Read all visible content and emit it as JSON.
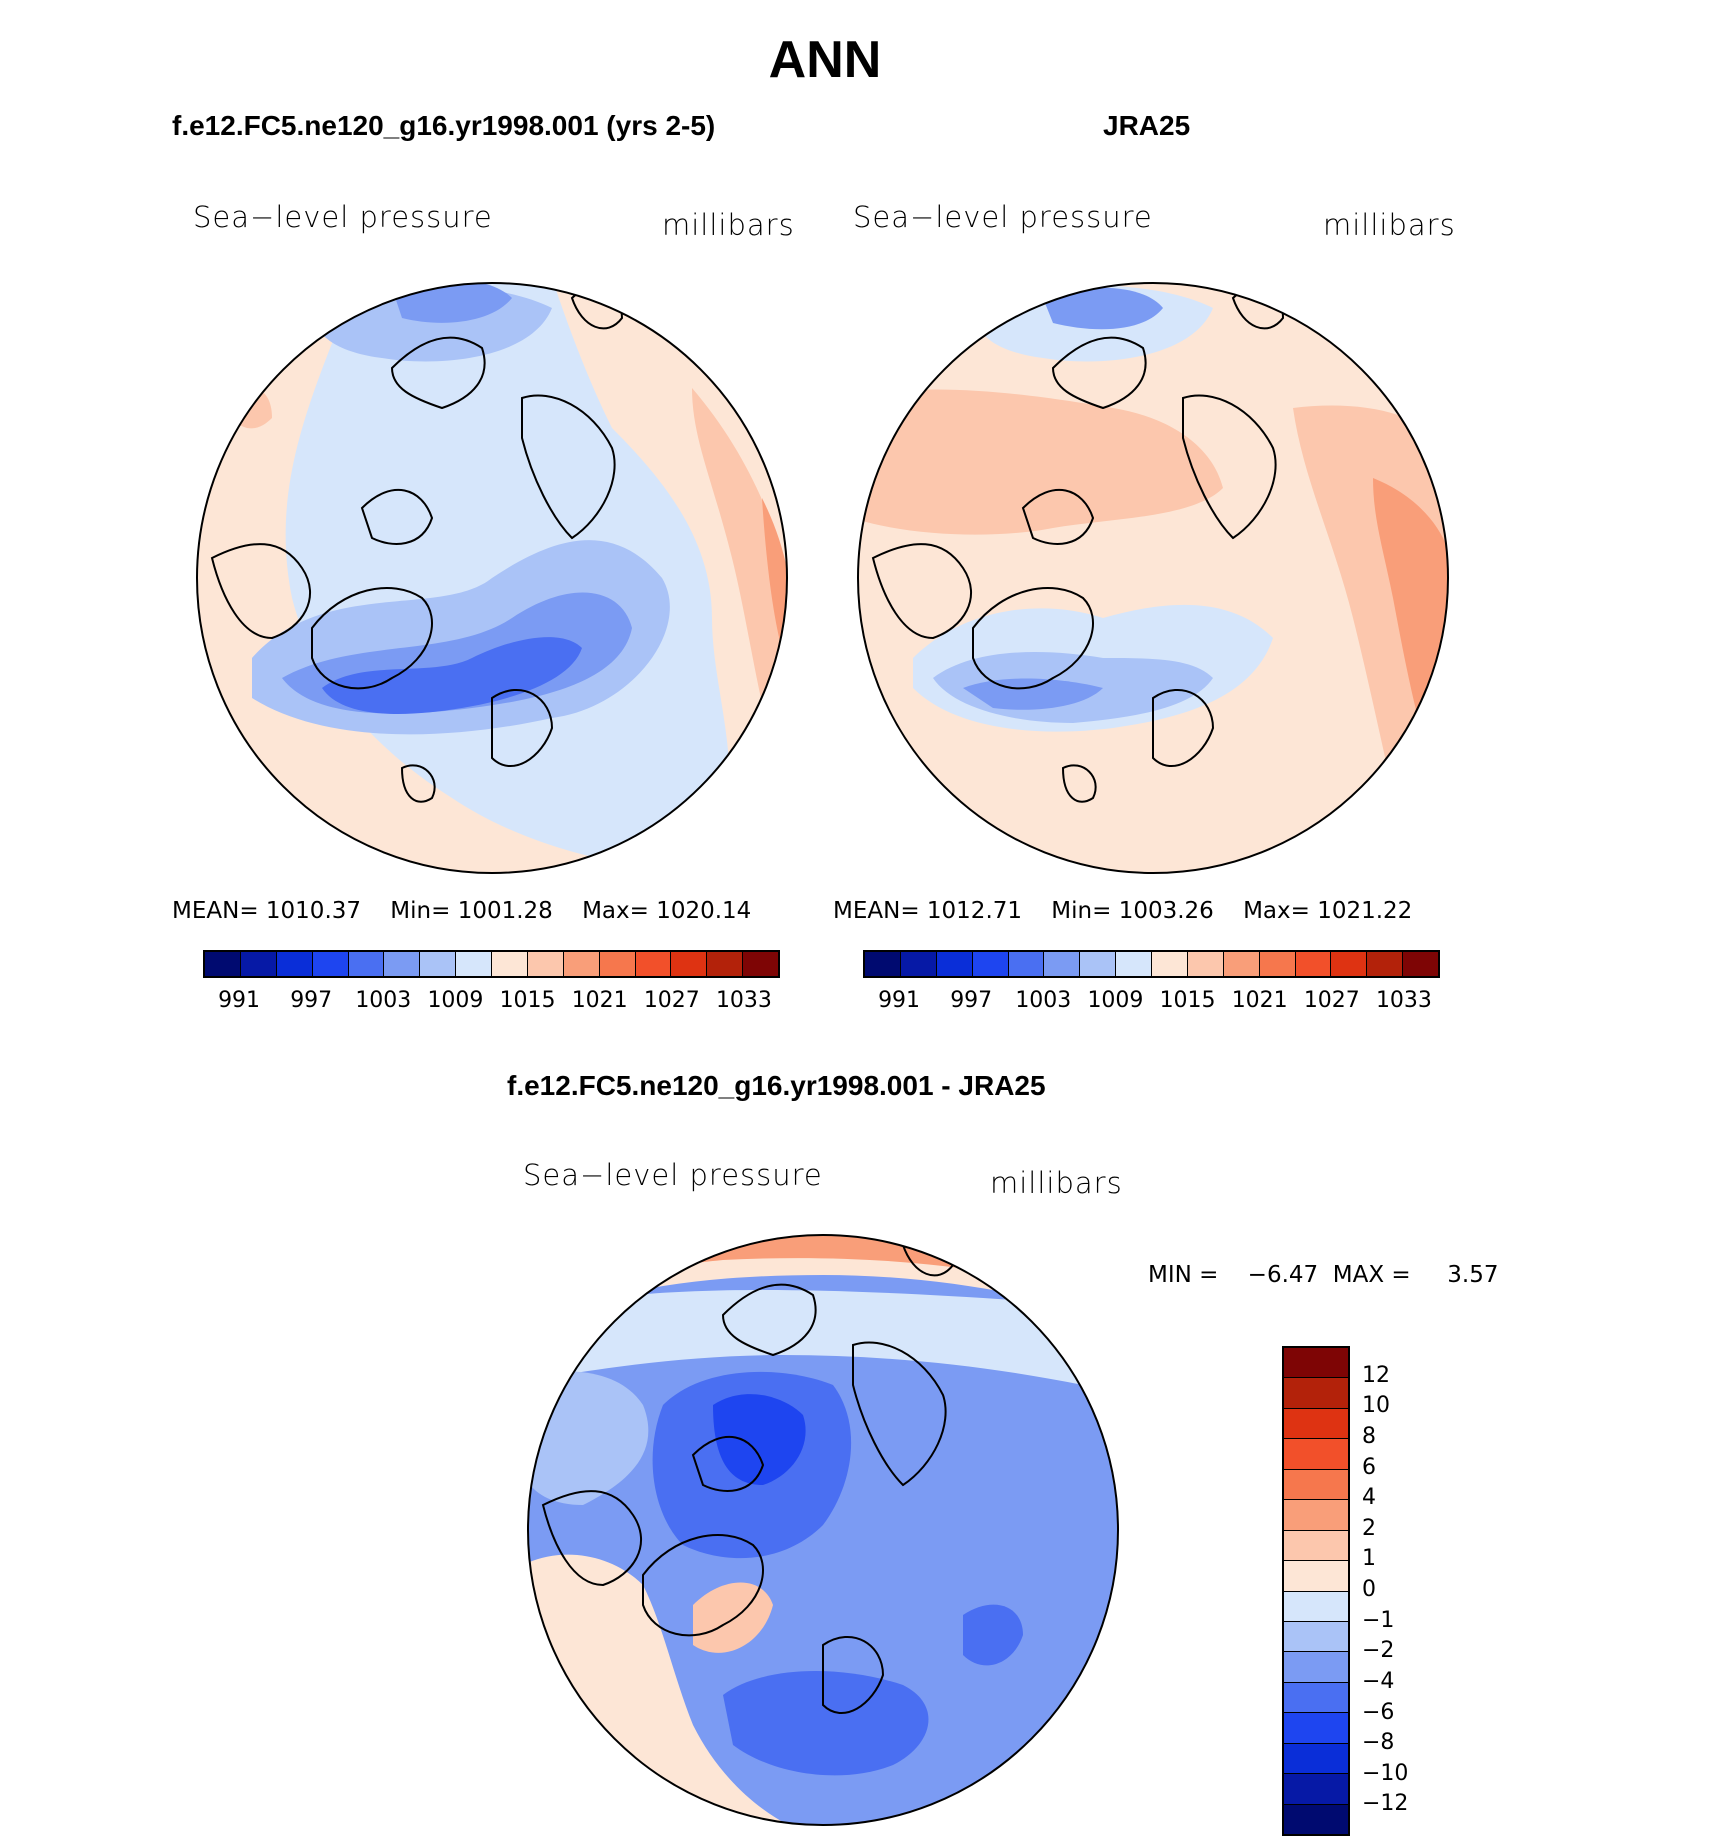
{
  "figure": {
    "title": "ANN",
    "panels": [
      {
        "id": "model",
        "title": "f.e12.FC5.ne120_g16.yr1998.001 (yrs 2-5)",
        "variable": "Sea−level pressure",
        "units": "millibars",
        "stats": {
          "mean_label": "MEAN=",
          "mean": "1010.37",
          "min_label": "Min=",
          "min": "1001.28",
          "max_label": "Max=",
          "max": "1020.14"
        }
      },
      {
        "id": "obs",
        "title": "JRA25",
        "variable": "Sea−level pressure",
        "units": "millibars",
        "stats": {
          "mean_label": "MEAN=",
          "mean": "1012.71",
          "min_label": "Min=",
          "min": "1003.26",
          "max_label": "Max=",
          "max": "1021.22"
        }
      },
      {
        "id": "diff",
        "title": "f.e12.FC5.ne120_g16.yr1998.001 - JRA25",
        "variable": "Sea−level pressure",
        "units": "millibars",
        "stats": {
          "min_label": "MIN =",
          "min": "−6.47",
          "max_label": "MAX =",
          "max": "3.57"
        }
      }
    ]
  },
  "colorbar_abs": {
    "colors": [
      "#000a70",
      "#0619a6",
      "#0a2ed8",
      "#1e45f0",
      "#4a6ff2",
      "#7b9bf3",
      "#aac3f7",
      "#d6e6fb",
      "#fde6d6",
      "#fcc7ad",
      "#f99e79",
      "#f6774d",
      "#f2502a",
      "#de3312",
      "#b3220a",
      "#7e0505"
    ],
    "labels": [
      "991",
      "997",
      "1003",
      "1009",
      "1015",
      "1021",
      "1027",
      "1033"
    ]
  },
  "colorbar_diff": {
    "colors": [
      "#7e0505",
      "#b3220a",
      "#de3312",
      "#f2502a",
      "#f6774d",
      "#f99e79",
      "#fcc7ad",
      "#fde6d6",
      "#d6e6fb",
      "#aac3f7",
      "#7b9bf3",
      "#4a6ff2",
      "#1e45f0",
      "#0a2ed8",
      "#0619a6",
      "#000a70"
    ],
    "labels": [
      "12",
      "10",
      "8",
      "6",
      "4",
      "2",
      "1",
      "0",
      "−1",
      "−2",
      "−4",
      "−6",
      "−8",
      "−10",
      "−12"
    ]
  },
  "map_colors": {
    "ocean_base_model": "#d6e6fb",
    "ocean_base_obs": "#fde6d6",
    "ocean_base_diff": "#7b9bf3",
    "coast": "#000000"
  }
}
